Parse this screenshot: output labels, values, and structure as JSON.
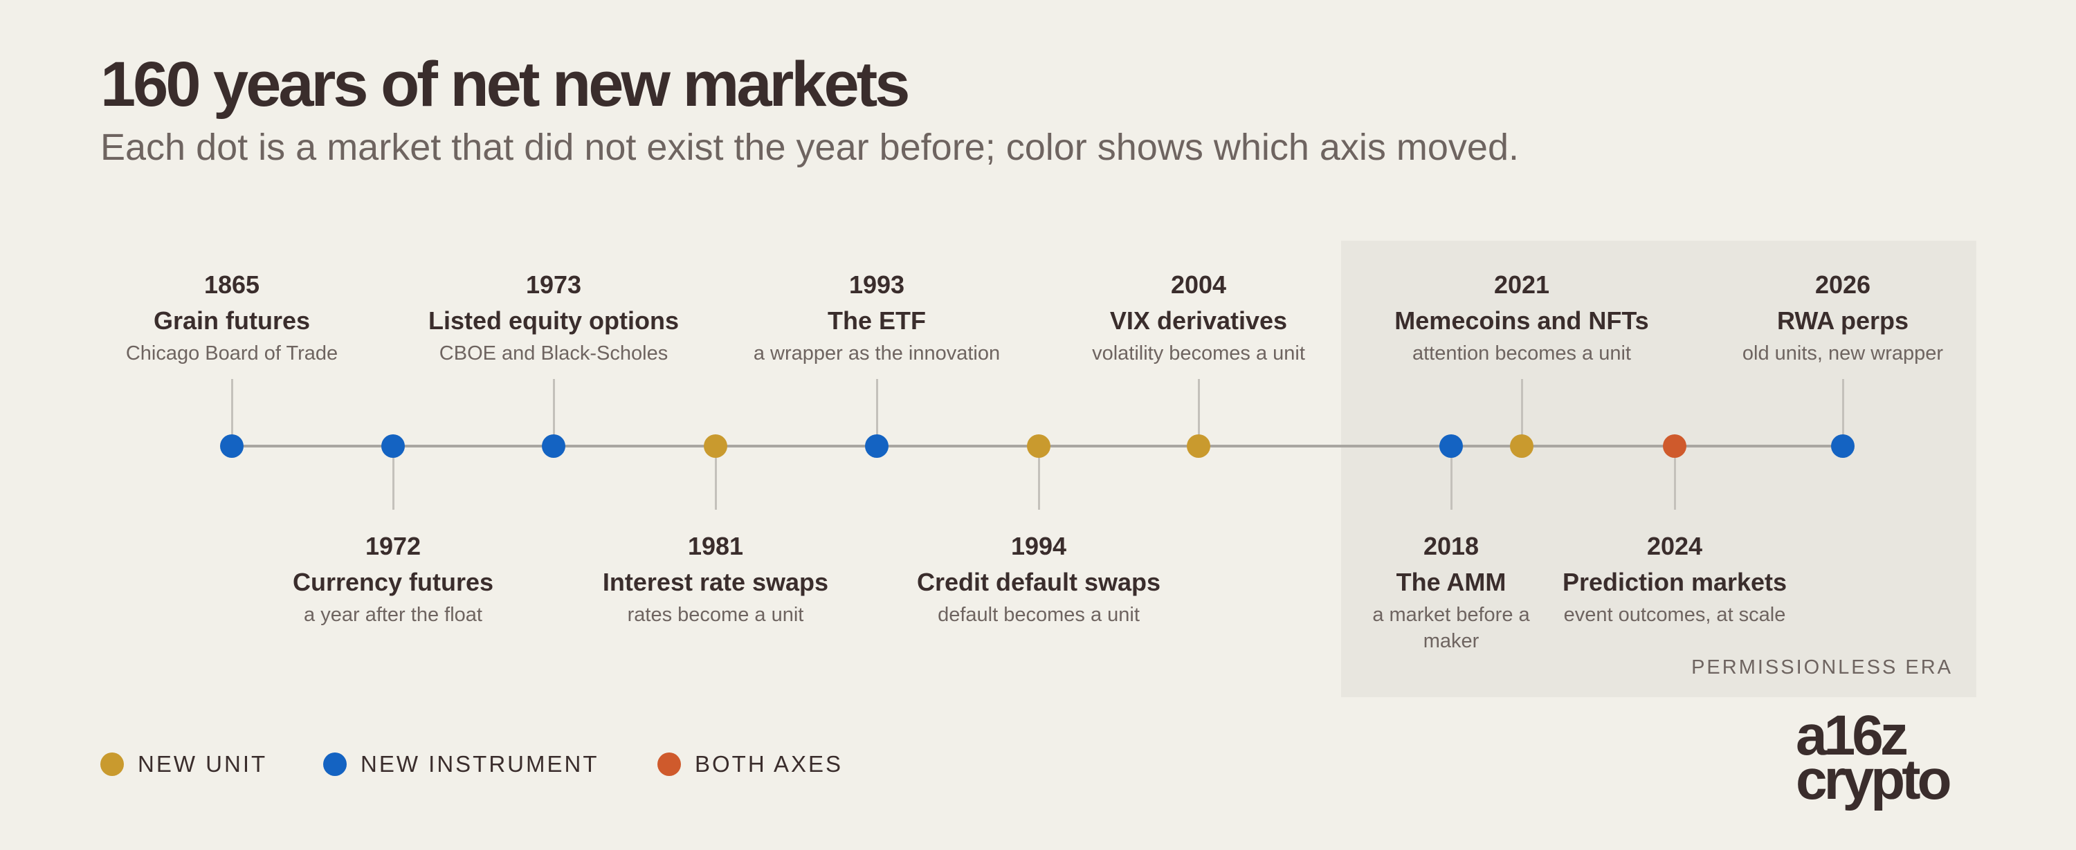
{
  "title": "160 years of net new markets",
  "subtitle": "Each dot is a market that did not exist the year before; color shows which axis moved.",
  "era_label": "PERMISSIONLESS ERA",
  "colors": {
    "new_unit": "#c99a2e",
    "new_instrument": "#1463c2",
    "both_axes": "#cf5a2c"
  },
  "legend": [
    {
      "key": "new_unit",
      "label": "NEW UNIT"
    },
    {
      "key": "new_instrument",
      "label": "NEW INSTRUMENT"
    },
    {
      "key": "both_axes",
      "label": "BOTH AXES"
    }
  ],
  "events": [
    {
      "year": "1865",
      "name": "Grain futures",
      "note": "Chicago Board of Trade",
      "type": "new_instrument",
      "side": "up"
    },
    {
      "year": "1972",
      "name": "Currency futures",
      "note": "a year after the float",
      "type": "new_instrument",
      "side": "down"
    },
    {
      "year": "1973",
      "name": "Listed equity options",
      "note": "CBOE and Black-Scholes",
      "type": "new_instrument",
      "side": "up"
    },
    {
      "year": "1981",
      "name": "Interest rate swaps",
      "note": "rates become a unit",
      "type": "new_unit",
      "side": "down"
    },
    {
      "year": "1993",
      "name": "The ETF",
      "note": "a wrapper as the innovation",
      "type": "new_instrument",
      "side": "up"
    },
    {
      "year": "1994",
      "name": "Credit default swaps",
      "note": "default becomes a unit",
      "type": "new_unit",
      "side": "down"
    },
    {
      "year": "2004",
      "name": "VIX derivatives",
      "note": "volatility becomes a unit",
      "type": "new_unit",
      "side": "up"
    },
    {
      "year": "2018",
      "name": "The AMM",
      "note": "a market before a maker",
      "type": "new_instrument",
      "side": "down"
    },
    {
      "year": "2021",
      "name": "Memecoins and NFTs",
      "note": "attention becomes a unit",
      "type": "new_unit",
      "side": "up"
    },
    {
      "year": "2024",
      "name": "Prediction markets",
      "note": "event outcomes, at scale",
      "type": "both_axes",
      "side": "down"
    },
    {
      "year": "2026",
      "name": "RWA perps",
      "note": "old units, new wrapper",
      "type": "new_instrument",
      "side": "up"
    }
  ],
  "logo": {
    "line1": "a16z",
    "line2": "crypto"
  }
}
